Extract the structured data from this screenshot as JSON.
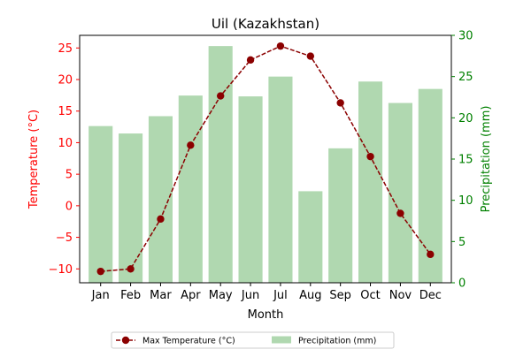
{
  "chart_data": {
    "type": "bar+line",
    "title": "Uil (Kazakhstan)",
    "xlabel": "Month",
    "ylabel_left": "Temperature (°C)",
    "ylabel_right": "Precipitation (mm)",
    "categories": [
      "Jan",
      "Feb",
      "Mar",
      "Apr",
      "May",
      "Jun",
      "Jul",
      "Aug",
      "Sep",
      "Oct",
      "Nov",
      "Dec"
    ],
    "ylim_left": [
      -12.2,
      27.0
    ],
    "ylim_right": [
      0,
      30
    ],
    "yticks_left": [
      "−10",
      "−5",
      "0",
      "5",
      "10",
      "15",
      "20",
      "25"
    ],
    "yticks_right": [
      "0",
      "5",
      "10",
      "15",
      "20",
      "25",
      "30"
    ],
    "series": [
      {
        "name": "Max Temperature (°C)",
        "kind": "line",
        "axis": "left",
        "values": [
          -10.4,
          -10.0,
          -2.1,
          9.6,
          17.4,
          23.1,
          25.3,
          23.7,
          16.3,
          7.8,
          -1.2,
          -7.7
        ]
      },
      {
        "name": "Precipitation (mm)",
        "kind": "bar",
        "axis": "right",
        "values": [
          19.0,
          18.1,
          20.2,
          22.7,
          28.7,
          22.6,
          25.0,
          11.1,
          16.3,
          24.4,
          21.8,
          23.5
        ]
      }
    ],
    "legend_position": "bottom-center",
    "colors": {
      "line": "#8b0000",
      "bar": "#b0d8b0",
      "left_axis": "#ff0000",
      "right_axis": "#008000",
      "text": "#000000"
    }
  }
}
